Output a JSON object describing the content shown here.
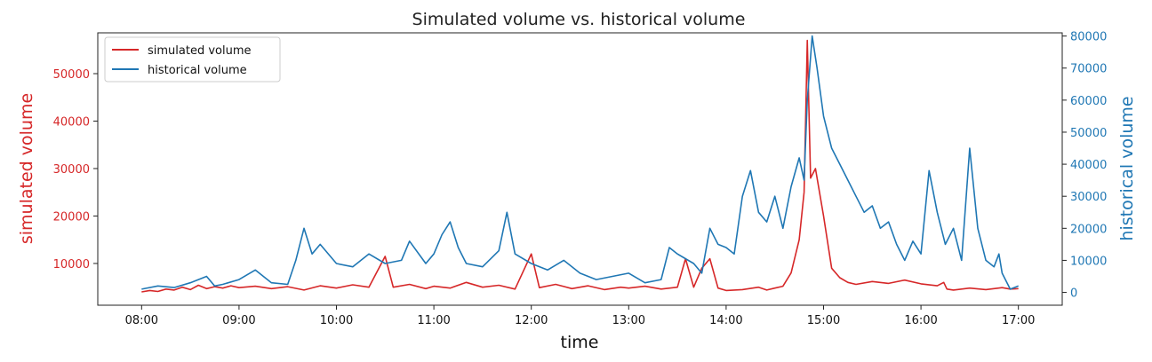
{
  "chart_data": {
    "type": "line",
    "title": "Simulated volume vs. historical volume",
    "xlabel": "time",
    "ylabel_left": "simulated volume",
    "ylabel_right": "historical volume",
    "x_ticks": [
      "08:00",
      "09:00",
      "10:00",
      "11:00",
      "12:00",
      "13:00",
      "14:00",
      "15:00",
      "16:00",
      "17:00"
    ],
    "y_left_ticks": [
      10000,
      20000,
      30000,
      40000,
      50000
    ],
    "y_right_ticks": [
      0,
      10000,
      20000,
      30000,
      40000,
      50000,
      60000,
      70000,
      80000
    ],
    "y_left_range": [
      1200,
      58600
    ],
    "y_right_range": [
      -4000,
      81000
    ],
    "x_range": [
      "07:33",
      "17:27"
    ],
    "legend": {
      "position": "top-left",
      "entries": [
        "simulated volume",
        "historical volume"
      ]
    },
    "colors": {
      "simulated": "#d62728",
      "historical": "#1f77b4"
    },
    "series": [
      {
        "name": "simulated volume",
        "axis": "left",
        "color": "#d62728",
        "points": [
          [
            "08:00",
            4000
          ],
          [
            "08:05",
            4300
          ],
          [
            "08:10",
            4100
          ],
          [
            "08:15",
            4600
          ],
          [
            "08:20",
            4400
          ],
          [
            "08:25",
            5000
          ],
          [
            "08:30",
            4500
          ],
          [
            "08:35",
            5400
          ],
          [
            "08:40",
            4700
          ],
          [
            "08:45",
            5100
          ],
          [
            "08:50",
            4800
          ],
          [
            "08:55",
            5300
          ],
          [
            "09:00",
            4900
          ],
          [
            "09:10",
            5200
          ],
          [
            "09:20",
            4700
          ],
          [
            "09:30",
            5100
          ],
          [
            "09:40",
            4400
          ],
          [
            "09:50",
            5300
          ],
          [
            "10:00",
            4800
          ],
          [
            "10:10",
            5500
          ],
          [
            "10:20",
            5000
          ],
          [
            "10:30",
            11500
          ],
          [
            "10:35",
            5000
          ],
          [
            "10:45",
            5600
          ],
          [
            "10:55",
            4700
          ],
          [
            "11:00",
            5200
          ],
          [
            "11:10",
            4800
          ],
          [
            "11:20",
            6000
          ],
          [
            "11:30",
            5000
          ],
          [
            "11:40",
            5400
          ],
          [
            "11:50",
            4600
          ],
          [
            "12:00",
            12000
          ],
          [
            "12:05",
            4900
          ],
          [
            "12:15",
            5600
          ],
          [
            "12:25",
            4700
          ],
          [
            "12:35",
            5300
          ],
          [
            "12:45",
            4500
          ],
          [
            "12:55",
            5000
          ],
          [
            "13:00",
            4800
          ],
          [
            "13:10",
            5200
          ],
          [
            "13:20",
            4600
          ],
          [
            "13:30",
            5000
          ],
          [
            "13:35",
            11000
          ],
          [
            "13:40",
            5000
          ],
          [
            "13:45",
            9000
          ],
          [
            "13:50",
            11000
          ],
          [
            "13:55",
            4800
          ],
          [
            "14:00",
            4300
          ],
          [
            "14:10",
            4500
          ],
          [
            "14:20",
            5000
          ],
          [
            "14:25",
            4400
          ],
          [
            "14:30",
            4800
          ],
          [
            "14:35",
            5200
          ],
          [
            "14:40",
            8000
          ],
          [
            "14:45",
            15000
          ],
          [
            "14:48",
            25000
          ],
          [
            "14:50",
            57000
          ],
          [
            "14:52",
            28000
          ],
          [
            "14:55",
            30000
          ],
          [
            "15:00",
            20000
          ],
          [
            "15:05",
            9000
          ],
          [
            "15:10",
            7000
          ],
          [
            "15:15",
            6000
          ],
          [
            "15:20",
            5600
          ],
          [
            "15:30",
            6200
          ],
          [
            "15:40",
            5800
          ],
          [
            "15:50",
            6500
          ],
          [
            "16:00",
            5700
          ],
          [
            "16:10",
            5300
          ],
          [
            "16:14",
            6000
          ],
          [
            "16:16",
            4600
          ],
          [
            "16:20",
            4400
          ],
          [
            "16:30",
            4800
          ],
          [
            "16:40",
            4500
          ],
          [
            "16:50",
            4900
          ],
          [
            "16:55",
            4600
          ],
          [
            "17:00",
            4700
          ]
        ]
      },
      {
        "name": "historical volume",
        "axis": "right",
        "color": "#1f77b4",
        "points": [
          [
            "08:00",
            1000
          ],
          [
            "08:10",
            2000
          ],
          [
            "08:20",
            1500
          ],
          [
            "08:30",
            3000
          ],
          [
            "08:40",
            5000
          ],
          [
            "08:45",
            2000
          ],
          [
            "08:50",
            2500
          ],
          [
            "09:00",
            4000
          ],
          [
            "09:10",
            7000
          ],
          [
            "09:20",
            3000
          ],
          [
            "09:30",
            2500
          ],
          [
            "09:35",
            10000
          ],
          [
            "09:40",
            20000
          ],
          [
            "09:45",
            12000
          ],
          [
            "09:50",
            15000
          ],
          [
            "10:00",
            9000
          ],
          [
            "10:10",
            8000
          ],
          [
            "10:20",
            12000
          ],
          [
            "10:30",
            9000
          ],
          [
            "10:40",
            10000
          ],
          [
            "10:45",
            16000
          ],
          [
            "10:55",
            9000
          ],
          [
            "11:00",
            12000
          ],
          [
            "11:05",
            18000
          ],
          [
            "11:10",
            22000
          ],
          [
            "11:15",
            14000
          ],
          [
            "11:20",
            9000
          ],
          [
            "11:30",
            8000
          ],
          [
            "11:40",
            13000
          ],
          [
            "11:45",
            25000
          ],
          [
            "11:50",
            12000
          ],
          [
            "12:00",
            9000
          ],
          [
            "12:10",
            7000
          ],
          [
            "12:20",
            10000
          ],
          [
            "12:30",
            6000
          ],
          [
            "12:40",
            4000
          ],
          [
            "12:50",
            5000
          ],
          [
            "13:00",
            6000
          ],
          [
            "13:10",
            3000
          ],
          [
            "13:20",
            4000
          ],
          [
            "13:25",
            14000
          ],
          [
            "13:30",
            12000
          ],
          [
            "13:40",
            9000
          ],
          [
            "13:45",
            6000
          ],
          [
            "13:50",
            20000
          ],
          [
            "13:55",
            15000
          ],
          [
            "14:00",
            14000
          ],
          [
            "14:05",
            12000
          ],
          [
            "14:10",
            30000
          ],
          [
            "14:15",
            38000
          ],
          [
            "14:20",
            25000
          ],
          [
            "14:25",
            22000
          ],
          [
            "14:30",
            30000
          ],
          [
            "14:35",
            20000
          ],
          [
            "14:40",
            33000
          ],
          [
            "14:45",
            42000
          ],
          [
            "14:48",
            35000
          ],
          [
            "14:50",
            60000
          ],
          [
            "14:53",
            80000
          ],
          [
            "14:56",
            70000
          ],
          [
            "15:00",
            55000
          ],
          [
            "15:05",
            45000
          ],
          [
            "15:10",
            40000
          ],
          [
            "15:15",
            35000
          ],
          [
            "15:20",
            30000
          ],
          [
            "15:25",
            25000
          ],
          [
            "15:30",
            27000
          ],
          [
            "15:35",
            20000
          ],
          [
            "15:40",
            22000
          ],
          [
            "15:45",
            15000
          ],
          [
            "15:50",
            10000
          ],
          [
            "15:55",
            16000
          ],
          [
            "16:00",
            12000
          ],
          [
            "16:05",
            38000
          ],
          [
            "16:10",
            25000
          ],
          [
            "16:15",
            15000
          ],
          [
            "16:20",
            20000
          ],
          [
            "16:25",
            10000
          ],
          [
            "16:30",
            45000
          ],
          [
            "16:35",
            20000
          ],
          [
            "16:40",
            10000
          ],
          [
            "16:45",
            8000
          ],
          [
            "16:48",
            12000
          ],
          [
            "16:50",
            6000
          ],
          [
            "16:55",
            1000
          ],
          [
            "17:00",
            2000
          ]
        ]
      }
    ]
  }
}
